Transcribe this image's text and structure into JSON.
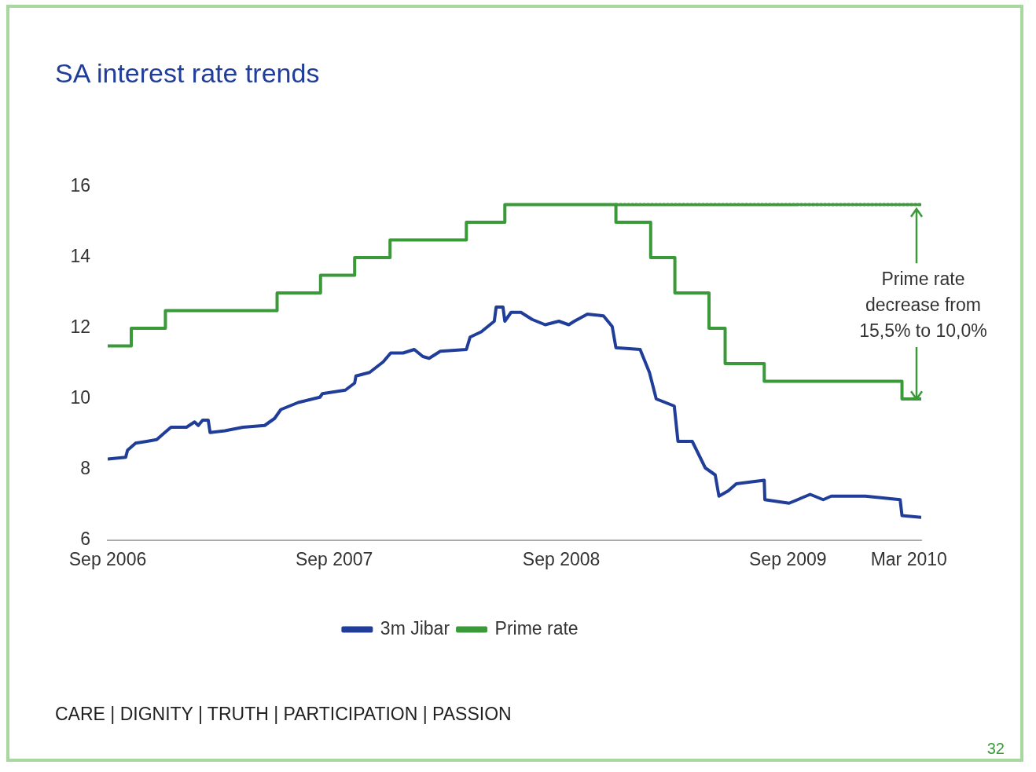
{
  "chart_data": {
    "type": "line",
    "title": "SA interest rate trends",
    "xlim": [
      "2006-09-01",
      "2010-04-04"
    ],
    "xticks": [
      {
        "value": "2006-09-01",
        "label": "Sep 2006"
      },
      {
        "value": "2007-09-01",
        "label": "Sep 2007"
      },
      {
        "value": "2008-09-01",
        "label": "Sep 2008"
      },
      {
        "value": "2009-09-01",
        "label": "Sep 2009"
      },
      {
        "value": "2010-03-15",
        "label": "Mar 2010"
      }
    ],
    "ylim": [
      6,
      16
    ],
    "yticks": [
      6,
      8,
      10,
      12,
      14,
      16
    ],
    "grid": false,
    "legend": "bottom",
    "marker": "none",
    "series": [
      {
        "name": "3m Jibar",
        "color": "#1f3d99",
        "x": [
          "2006-09-01",
          "2006-09-30",
          "2006-10-03",
          "2006-10-16",
          "2006-11-03",
          "2006-11-19",
          "2006-12-02",
          "2006-12-12",
          "2007-01-06",
          "2007-01-19",
          "2007-01-25",
          "2007-02-01",
          "2007-02-10",
          "2007-02-13",
          "2007-03-09",
          "2007-04-07",
          "2007-05-12",
          "2007-05-28",
          "2007-06-07",
          "2007-07-05",
          "2007-08-09",
          "2007-08-13",
          "2007-09-19",
          "2007-10-04",
          "2007-10-06",
          "2007-10-28",
          "2007-11-19",
          "2007-12-01",
          "2007-12-21",
          "2008-01-08",
          "2008-01-22",
          "2008-02-01",
          "2008-02-19",
          "2008-04-01",
          "2008-04-07",
          "2008-04-25",
          "2008-05-16",
          "2008-05-19",
          "2008-05-30",
          "2008-06-02",
          "2008-06-12",
          "2008-06-28",
          "2008-07-16",
          "2008-08-06",
          "2008-08-28",
          "2008-09-13",
          "2008-09-22",
          "2008-10-13",
          "2008-11-08",
          "2008-11-22",
          "2008-11-28",
          "2009-01-06",
          "2009-01-21",
          "2009-02-01",
          "2009-03-02",
          "2009-03-08",
          "2009-03-31",
          "2009-04-21",
          "2009-05-07",
          "2009-05-13",
          "2009-05-28",
          "2009-06-10",
          "2009-07-25",
          "2009-07-26",
          "2009-09-03",
          "2009-10-07",
          "2009-10-28",
          "2009-11-10",
          "2010-01-04",
          "2010-03-01",
          "2010-03-04",
          "2010-04-04"
        ],
        "values": [
          8.3,
          8.35,
          8.55,
          8.75,
          8.8,
          8.85,
          9.05,
          9.2,
          9.2,
          9.35,
          9.25,
          9.4,
          9.4,
          9.05,
          9.1,
          9.2,
          9.25,
          9.45,
          9.7,
          9.9,
          10.05,
          10.15,
          10.25,
          10.45,
          10.65,
          10.75,
          11.05,
          11.3,
          11.3,
          11.4,
          11.2,
          11.15,
          11.35,
          11.4,
          11.75,
          11.9,
          12.2,
          12.6,
          12.6,
          12.2,
          12.45,
          12.45,
          12.25,
          12.1,
          12.2,
          12.1,
          12.2,
          12.4,
          12.35,
          12.05,
          11.45,
          11.4,
          10.75,
          10.0,
          9.8,
          8.8,
          8.8,
          8.05,
          7.85,
          7.25,
          7.4,
          7.6,
          7.7,
          7.15,
          7.05,
          7.3,
          7.15,
          7.25,
          7.25,
          7.15,
          6.7,
          6.65
        ]
      },
      {
        "name": "Prime rate",
        "type": "step",
        "color": "#3a9a3a",
        "x": [
          "2006-09-01",
          "2006-10-09",
          "2006-12-03",
          "2007-06-01",
          "2007-08-10",
          "2007-10-04",
          "2007-11-30",
          "2008-04-01",
          "2008-06-02",
          "2008-11-28",
          "2009-01-23",
          "2009-03-03",
          "2009-04-27",
          "2009-05-23",
          "2009-07-25",
          "2010-03-04",
          "2010-04-04"
        ],
        "values": [
          11.5,
          12,
          12.5,
          13,
          13.5,
          14,
          14.5,
          15,
          15.5,
          15,
          14,
          13,
          12,
          11,
          10.5,
          10,
          10
        ]
      },
      {
        "color": "#3a9a3a",
        "line_style": "dotted",
        "x": [
          "2008-11-28",
          "2010-04-04"
        ],
        "values": [
          15.5,
          15.5
        ]
      }
    ],
    "annotations": [
      {
        "text": "Prime rate\ndecrease from\n15,5% to 10,0%",
        "x": "2010-03-28",
        "y": 10
      },
      "CARE | DIGNITY | TRUTH | PARTICIPATION | PASSION",
      "32"
    ]
  }
}
